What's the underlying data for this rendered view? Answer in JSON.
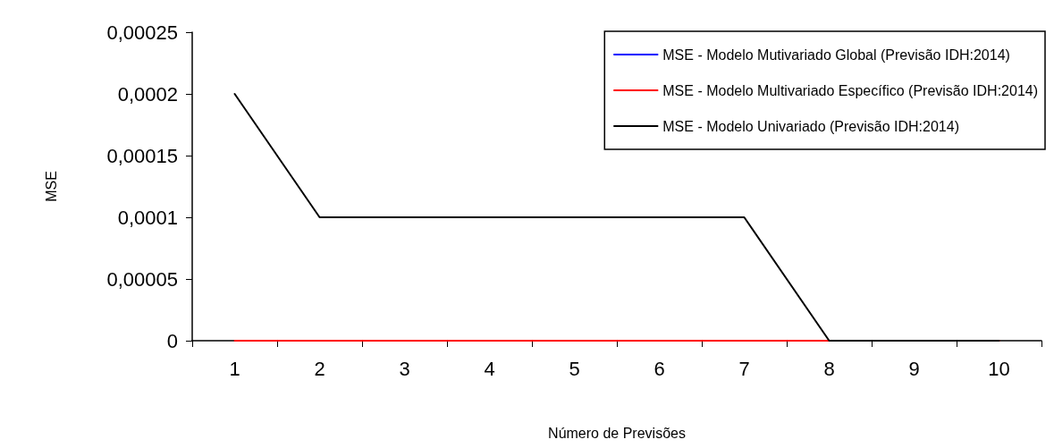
{
  "chart_data": {
    "type": "line",
    "xlabel": "Número de Previsões",
    "ylabel": "MSE",
    "categories": [
      "1",
      "2",
      "3",
      "4",
      "5",
      "6",
      "7",
      "8",
      "9",
      "10"
    ],
    "series": [
      {
        "name": "MSE - Modelo Mutivariado Global (Previsão IDH:2014)",
        "color": "#0000ff",
        "values": [
          null,
          null,
          null,
          null,
          null,
          null,
          null,
          null,
          null,
          null
        ]
      },
      {
        "name": "MSE - Modelo Multivariado Específico (Previsão IDH:2014)",
        "color": "#ff0000",
        "values": [
          0,
          0,
          0,
          0,
          0,
          0,
          0,
          0,
          0,
          0
        ]
      },
      {
        "name": "MSE - Modelo Univariado (Previsão IDH:2014)",
        "color": "#000000",
        "values": [
          0.0002,
          0.0001,
          0.0001,
          0.0001,
          0.0001,
          0.0001,
          0.0001,
          0,
          0,
          0
        ]
      }
    ],
    "ylim": [
      0,
      0.00025
    ],
    "yticks": [
      {
        "value": 0,
        "label": "0"
      },
      {
        "value": 5e-05,
        "label": "0,00005"
      },
      {
        "value": 0.0001,
        "label": "0,0001"
      },
      {
        "value": 0.00015,
        "label": "0,00015"
      },
      {
        "value": 0.0002,
        "label": "0,0002"
      },
      {
        "value": 0.00025,
        "label": "0,00025"
      }
    ],
    "grid": false,
    "legend": "top right",
    "marker": "none",
    "line_style": "solid"
  }
}
